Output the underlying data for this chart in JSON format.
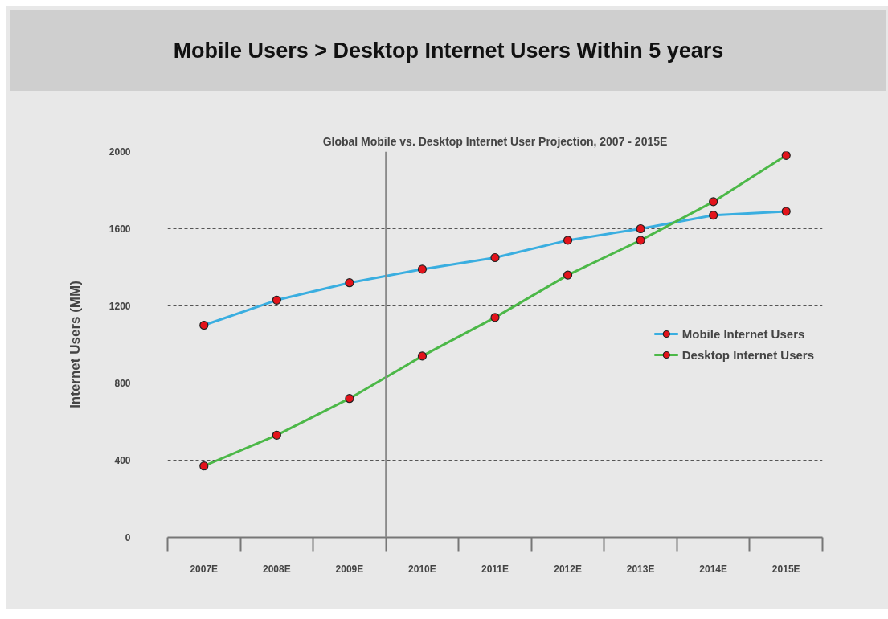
{
  "chart_data": {
    "type": "line",
    "title": "Mobile Users > Desktop Internet Users Within 5 years",
    "subtitle": "Global Mobile vs. Desktop Internet User Projection, 2007 - 2015E",
    "ylabel": "Internet Users (MM)",
    "categories": [
      "2007E",
      "2008E",
      "2009E",
      "2010E",
      "2011E",
      "2012E",
      "2013E",
      "2014E",
      "2015E"
    ],
    "series": [
      {
        "name": "Mobile Internet Users",
        "color": "#3aaee0",
        "values": [
          1100,
          1230,
          1320,
          1390,
          1450,
          1540,
          1600,
          1670,
          1690
        ]
      },
      {
        "name": "Desktop Internet Users",
        "color": "#4cb848",
        "values": [
          370,
          530,
          720,
          940,
          1140,
          1360,
          1540,
          1740,
          1980
        ]
      }
    ],
    "ylim": [
      0,
      2000
    ],
    "yticks": [
      0,
      400,
      800,
      1200,
      1600,
      2000
    ],
    "ref_lines": [
      {
        "axis": "x",
        "value": "2010E",
        "color": "#8a8a8a"
      }
    ],
    "grid": "y",
    "legend": "right",
    "marker": "circle",
    "line_style": "solid"
  }
}
